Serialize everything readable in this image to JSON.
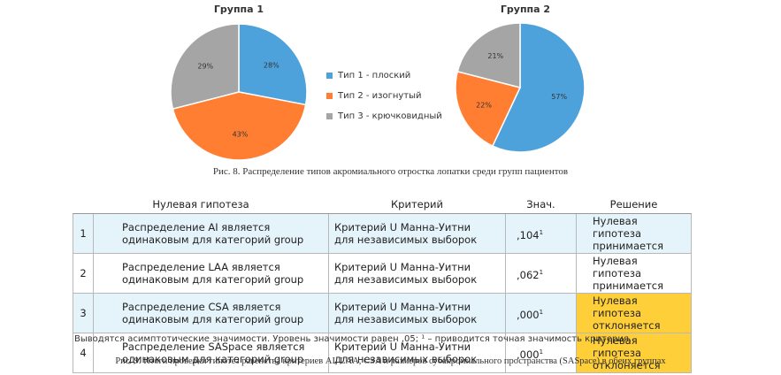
{
  "figure8": {
    "caption": "Рис. 8. Распределение типов акромиального отростка лопатки среди групп пациентов"
  },
  "chart_data": [
    {
      "type": "pie",
      "title": "Группа 1",
      "categories": [
        "Тип 1 - плоский",
        "Тип 2 - изогнутый",
        "Тип 3 - крючковидный"
      ],
      "values": [
        28,
        43,
        29
      ],
      "labels": [
        "28%",
        "43%",
        "29%"
      ],
      "colors": [
        "#4ea2dc",
        "#ff7e32",
        "#a5a5a5"
      ]
    },
    {
      "type": "pie",
      "title": "Группа 2",
      "categories": [
        "Тип 1 - плоский",
        "Тип 2 - изогнутый",
        "Тип 3 - крючковидный"
      ],
      "values": [
        57,
        22,
        21
      ],
      "labels": [
        "57%",
        "22%",
        "21%"
      ],
      "colors": [
        "#4ea2dc",
        "#ff7e32",
        "#a5a5a5"
      ]
    }
  ],
  "legend": [
    {
      "label": "Тип 1 - плоский",
      "color": "#4ea2dc"
    },
    {
      "label": "Тип 2 - изогнутый",
      "color": "#ff7e32"
    },
    {
      "label": "Тип 3 - крючковидный",
      "color": "#a5a5a5"
    }
  ],
  "table": {
    "headers": [
      "Нулевая гипотеза",
      "Критерий",
      "Знач.",
      "Решение"
    ],
    "rows": [
      {
        "num": "1",
        "hyp1": "Распределение AI является",
        "hyp2": "одинаковым для категорий group",
        "crit1": "Критерий U Манна-Уитни",
        "crit2": "для независимых выборок",
        "sig": ",104",
        "sup": "1",
        "dec1": "Нулевая гипотеза",
        "dec2": "принимается",
        "highlight": false
      },
      {
        "num": "2",
        "hyp1": "Распределение LAA является",
        "hyp2": "одинаковым для категорий group",
        "crit1": "Критерий U Манна-Уитни",
        "crit2": "для независимых выборок",
        "sig": ",062",
        "sup": "1",
        "dec1": "Нулевая гипотеза",
        "dec2": "принимается",
        "highlight": false
      },
      {
        "num": "3",
        "hyp1": "Распределение CSA является",
        "hyp2": "одинаковым для категорий group",
        "crit1": "Критерий U Манна-Уитни",
        "crit2": "для независимых выборок",
        "sig": ",000",
        "sup": "1",
        "dec1": "Нулевая гипотеза",
        "dec2": "отклоняется",
        "highlight": true
      },
      {
        "num": "4",
        "hyp1": "Распределение SASpace является",
        "hyp2": "одинаковым для категорий group",
        "crit1": "Критерий U Манна-Уитни",
        "crit2": "для независимых выборок",
        "sig": ",000",
        "sup": "1",
        "dec1": "Нулевая гипотеза",
        "dec2": "отклоняется",
        "highlight": true
      }
    ],
    "note": "Выводятся асимптотические значимости. Уровень значимости равен ,05; ¹ – приводится точная значимость критерия.",
    "row_colors": {
      "light": "#e5f3fa",
      "highlight": "#ffcf3a"
    }
  },
  "figure9": {
    "caption": "Рис. 9. Итоги проверки гипотез равенства критериев AI, LAA, CSA и размеров субакромиального пространства (SASpace) в обеих группах"
  }
}
